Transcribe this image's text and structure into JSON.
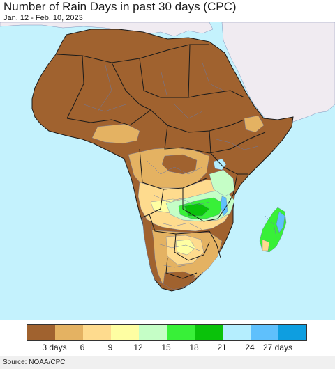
{
  "header": {
    "title": "Number of Rain Days in past 30 days (CPC)",
    "date_range": "Jan. 12 - Feb. 10, 2023"
  },
  "map": {
    "ocean_color": "#c4f2fd",
    "land_outside_color": "#f0ebf1",
    "border_color": "#1a1a1a",
    "region_border_color": "#6a7aa8"
  },
  "legend": {
    "colors": [
      "#a0622f",
      "#e4b262",
      "#fedb8e",
      "#fefea2",
      "#c5fec6",
      "#38f038",
      "#0ac20a",
      "#b5eefe",
      "#5fc0fc",
      "#0e9ee0"
    ],
    "labels": [
      {
        "text": "3 days"
      },
      {
        "text": "6"
      },
      {
        "text": "9"
      },
      {
        "text": "12"
      },
      {
        "text": "15"
      },
      {
        "text": "18"
      },
      {
        "text": "21"
      },
      {
        "text": "24"
      },
      {
        "text": "27 days"
      }
    ]
  },
  "footer": {
    "source": "Source: NOAA/CPC"
  }
}
